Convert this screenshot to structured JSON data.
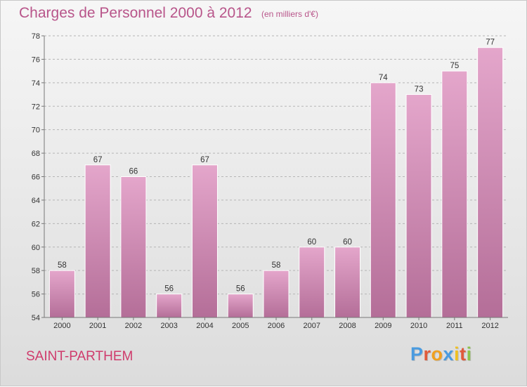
{
  "header": {
    "title": "Charges de Personnel 2000 à 2012",
    "subtitle": "(en milliers d'€)"
  },
  "footer": {
    "commune": "SAINT-PARTHEM",
    "brand": {
      "letters": [
        "P",
        "r",
        "o",
        "x",
        "i",
        "t",
        "i"
      ],
      "colors": [
        "#4a9be0",
        "#e05a3a",
        "#f0a020",
        "#4a9be0",
        "#f0c020",
        "#e05a3a",
        "#8bc34a"
      ]
    }
  },
  "colors": {
    "bar_top": "#e4a6cb",
    "bar_bottom": "#b46e98",
    "grid": "#b5b5b5",
    "axis": "#777777"
  },
  "chart_data": {
    "type": "bar",
    "categories": [
      "2000",
      "2001",
      "2002",
      "2003",
      "2004",
      "2005",
      "2006",
      "2007",
      "2008",
      "2009",
      "2010",
      "2011",
      "2012"
    ],
    "values": [
      58,
      67,
      66,
      56,
      67,
      56,
      58,
      60,
      60,
      74,
      73,
      75,
      77
    ],
    "ylim": [
      54,
      78
    ],
    "yticks": [
      54,
      56,
      58,
      60,
      62,
      64,
      66,
      68,
      70,
      72,
      74,
      76,
      78
    ],
    "grid": true,
    "legend": "none"
  }
}
